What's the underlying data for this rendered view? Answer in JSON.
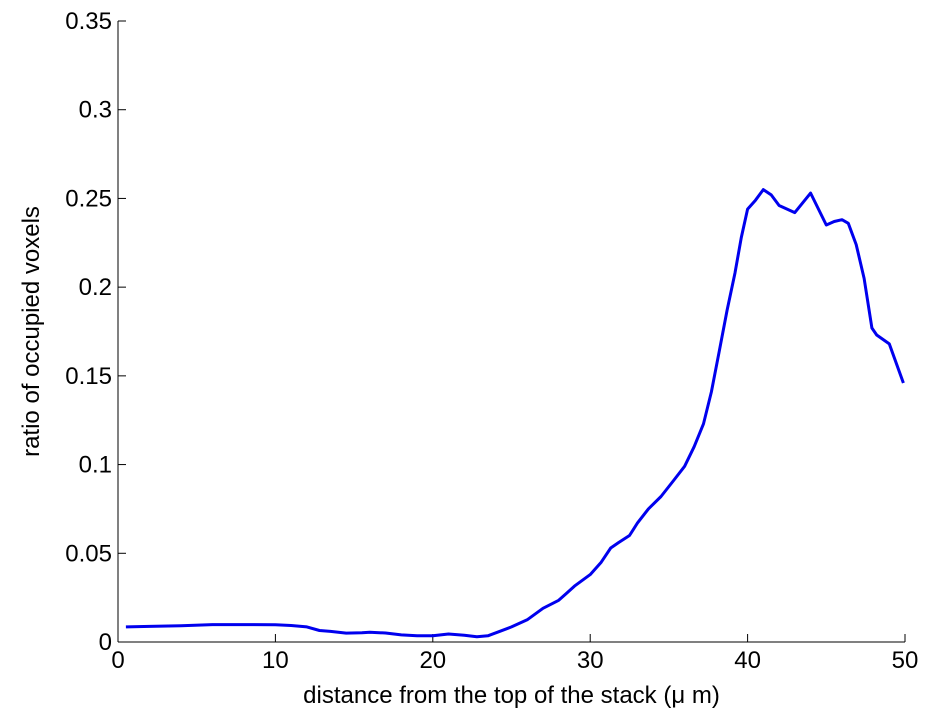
{
  "chart_data": {
    "type": "line",
    "title": "",
    "xlabel": "distance from the top of the stack (μ m)",
    "ylabel": "ratio of occupied voxels",
    "xlim": [
      0,
      50
    ],
    "ylim": [
      0,
      0.35
    ],
    "xticks": [
      0,
      10,
      20,
      30,
      40,
      50
    ],
    "xtick_labels": [
      "0",
      "10",
      "20",
      "30",
      "40",
      "50"
    ],
    "yticks": [
      0,
      0.05,
      0.1,
      0.15,
      0.2,
      0.25,
      0.3,
      0.35
    ],
    "ytick_labels": [
      "0",
      "0.05",
      "0.1",
      "0.15",
      "0.2",
      "0.25",
      "0.3",
      "0.35"
    ],
    "grid": false,
    "legend": "none",
    "series": [
      {
        "color": "#0000ee",
        "x": [
          0.5,
          2,
          4,
          6,
          8,
          10,
          11,
          12,
          12.8,
          13.5,
          14.5,
          15.5,
          16,
          17,
          18,
          19,
          20,
          21,
          22,
          22.8,
          23.5,
          24.2,
          25,
          26,
          27,
          28,
          28.5,
          29,
          30,
          30.7,
          31.3,
          31.8,
          32.5,
          33,
          33.7,
          34.5,
          35.3,
          36,
          36.6,
          37.2,
          37.7,
          38.2,
          38.7,
          39.2,
          39.6,
          40,
          40.5,
          41,
          41.5,
          42,
          43,
          44,
          45,
          45.5,
          46,
          46.4,
          46.9,
          47.4,
          47.9,
          48.2,
          49,
          49.9
        ],
        "y": [
          0.0085,
          0.0088,
          0.0092,
          0.0098,
          0.0098,
          0.0097,
          0.0093,
          0.0085,
          0.0065,
          0.006,
          0.005,
          0.0052,
          0.0055,
          0.0051,
          0.004,
          0.0035,
          0.0035,
          0.0045,
          0.0038,
          0.003,
          0.0035,
          0.0058,
          0.0085,
          0.0125,
          0.019,
          0.0235,
          0.0275,
          0.0315,
          0.038,
          0.045,
          0.053,
          0.056,
          0.06,
          0.067,
          0.075,
          0.082,
          0.091,
          0.099,
          0.11,
          0.123,
          0.141,
          0.164,
          0.187,
          0.208,
          0.228,
          0.244,
          0.249,
          0.255,
          0.252,
          0.246,
          0.242,
          0.253,
          0.235,
          0.237,
          0.238,
          0.236,
          0.224,
          0.205,
          0.177,
          0.173,
          0.168,
          0.146
        ]
      }
    ]
  }
}
